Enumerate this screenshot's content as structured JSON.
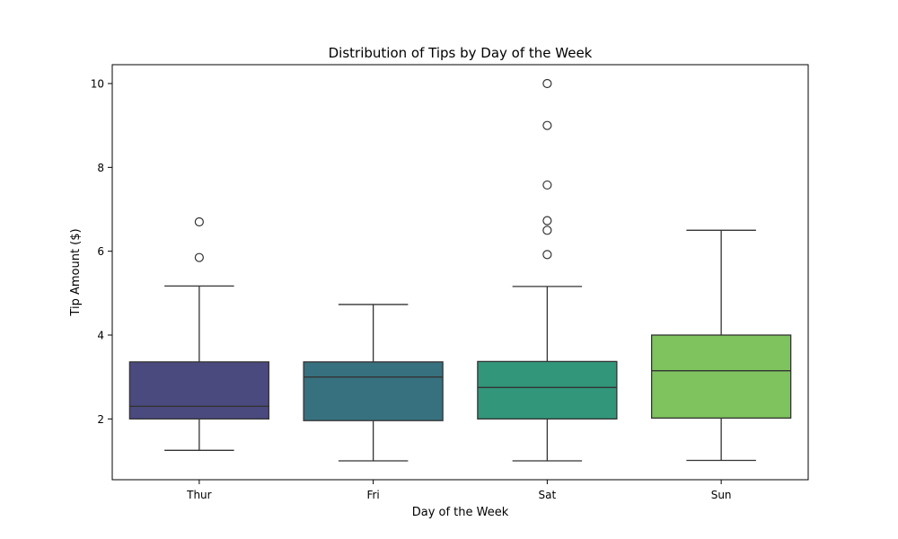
{
  "chart_data": {
    "type": "box",
    "title": "Distribution of Tips by Day of the Week",
    "xlabel": "Day of the Week",
    "ylabel": "Tip Amount ($)",
    "ylim": [
      0.55,
      10.45
    ],
    "yticks": [
      2,
      4,
      6,
      8,
      10
    ],
    "grid": false,
    "categories": [
      "Thur",
      "Fri",
      "Sat",
      "Sun"
    ],
    "colors": [
      "#4a4a7f",
      "#37717f",
      "#32967a",
      "#7ec35e"
    ],
    "line_color": "#333333",
    "boxes": [
      {
        "category": "Thur",
        "whisker_low": 1.25,
        "q1": 2.0,
        "median": 2.3,
        "q3": 3.36,
        "whisker_high": 5.17,
        "outliers": [
          5.85,
          6.7
        ]
      },
      {
        "category": "Fri",
        "whisker_low": 1.0,
        "q1": 1.96,
        "median": 3.0,
        "q3": 3.36,
        "whisker_high": 4.73,
        "outliers": []
      },
      {
        "category": "Sat",
        "whisker_low": 1.0,
        "q1": 2.0,
        "median": 2.75,
        "q3": 3.37,
        "whisker_high": 5.16,
        "outliers": [
          5.92,
          6.5,
          6.73,
          7.58,
          9.0,
          10.0
        ]
      },
      {
        "category": "Sun",
        "whisker_low": 1.01,
        "q1": 2.02,
        "median": 3.15,
        "q3": 4.0,
        "whisker_high": 6.5,
        "outliers": []
      }
    ]
  }
}
